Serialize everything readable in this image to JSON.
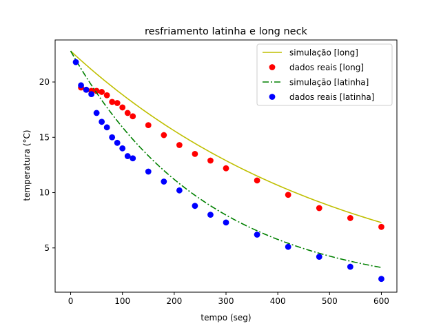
{
  "chart_data": {
    "type": "line",
    "title": "resfriamento latinha e long neck",
    "xlabel": "tempo (seg)",
    "ylabel": "temperatura (°C)",
    "xlim": [
      -30,
      630
    ],
    "ylim": [
      1.0,
      23.8
    ],
    "xticks": [
      0,
      100,
      200,
      300,
      400,
      500,
      600
    ],
    "yticks": [
      5,
      10,
      15,
      20
    ],
    "grid": false,
    "legend_position": "top-right",
    "series": [
      {
        "name": "simulação [long]",
        "kind": "line",
        "style": "solid",
        "color": "#bfbf00",
        "model": {
          "T0": 22.8,
          "Tamb": 0,
          "k": 0.0019
        }
      },
      {
        "name": "dados reais [long]",
        "kind": "scatter",
        "color": "#ff0000",
        "x": [
          20,
          30,
          40,
          50,
          60,
          70,
          80,
          90,
          100,
          110,
          120,
          150,
          180,
          210,
          240,
          270,
          300,
          360,
          420,
          480,
          540,
          600
        ],
        "y": [
          19.5,
          19.3,
          19.2,
          19.2,
          19.1,
          18.8,
          18.2,
          18.1,
          17.7,
          17.2,
          16.9,
          16.1,
          15.2,
          14.3,
          13.5,
          12.9,
          12.2,
          11.1,
          9.8,
          8.6,
          7.7,
          6.9
        ]
      },
      {
        "name": "simulação [latinha]",
        "kind": "line",
        "style": "dashdot",
        "color": "#008000",
        "model": {
          "T0": 22.8,
          "Tamb": 1.0,
          "k": 0.0038
        }
      },
      {
        "name": "dados reais [latinha]",
        "kind": "scatter",
        "color": "#0000ff",
        "x": [
          10,
          20,
          30,
          40,
          50,
          60,
          70,
          80,
          90,
          100,
          110,
          120,
          150,
          180,
          210,
          240,
          270,
          300,
          360,
          420,
          480,
          540,
          600
        ],
        "y": [
          21.8,
          19.7,
          19.3,
          18.9,
          17.2,
          16.4,
          15.9,
          15.0,
          14.5,
          14.0,
          13.3,
          13.1,
          11.9,
          11.0,
          10.2,
          8.8,
          8.0,
          7.3,
          6.2,
          5.1,
          4.2,
          3.3,
          2.2
        ]
      }
    ]
  }
}
